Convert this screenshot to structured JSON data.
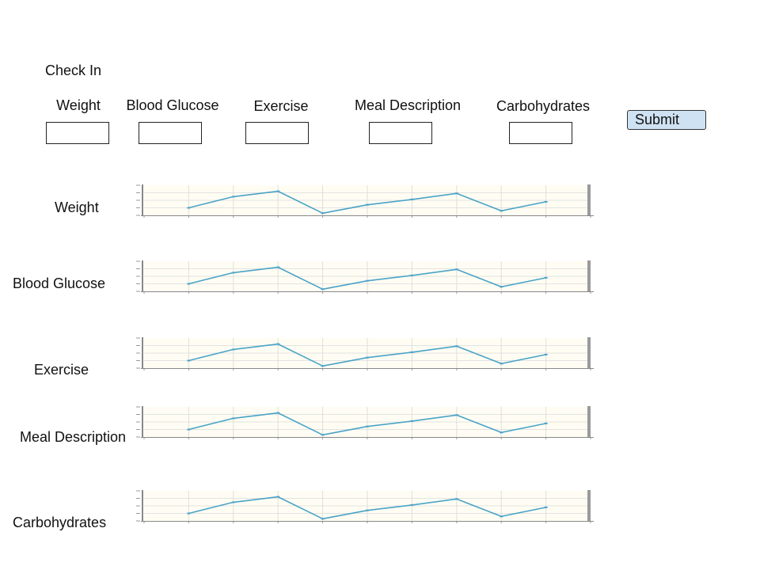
{
  "form": {
    "title": "Check In",
    "fields": [
      {
        "label": "Weight",
        "value": ""
      },
      {
        "label": "Blood Glucose",
        "value": ""
      },
      {
        "label": "Exercise",
        "value": ""
      },
      {
        "label": "Meal Description",
        "value": ""
      },
      {
        "label": "Carbohydrates",
        "value": ""
      }
    ],
    "submit_label": "Submit"
  },
  "charts": [
    {
      "label": "Weight"
    },
    {
      "label": "Blood Glucose"
    },
    {
      "label": "Exercise"
    },
    {
      "label": "Meal Description"
    },
    {
      "label": "Carbohydrates"
    }
  ],
  "chart_data": [
    {
      "type": "line",
      "x": [
        1,
        2,
        3,
        4,
        5,
        6,
        7,
        8,
        9
      ],
      "values": [
        0.25,
        0.62,
        0.8,
        0.07,
        0.35,
        0.53,
        0.73,
        0.15,
        0.45
      ],
      "ylim": [
        0,
        1
      ],
      "grid": true,
      "color": "#4aa3c8",
      "background": "#fffdf3"
    },
    {
      "type": "line",
      "x": [
        1,
        2,
        3,
        4,
        5,
        6,
        7,
        8,
        9
      ],
      "values": [
        0.25,
        0.62,
        0.8,
        0.07,
        0.35,
        0.53,
        0.73,
        0.15,
        0.45
      ],
      "ylim": [
        0,
        1
      ],
      "grid": true,
      "color": "#4aa3c8",
      "background": "#fffdf3"
    },
    {
      "type": "line",
      "x": [
        1,
        2,
        3,
        4,
        5,
        6,
        7,
        8,
        9
      ],
      "values": [
        0.25,
        0.62,
        0.8,
        0.07,
        0.35,
        0.53,
        0.73,
        0.15,
        0.45
      ],
      "ylim": [
        0,
        1
      ],
      "grid": true,
      "color": "#4aa3c8",
      "background": "#fffdf3"
    },
    {
      "type": "line",
      "x": [
        1,
        2,
        3,
        4,
        5,
        6,
        7,
        8,
        9
      ],
      "values": [
        0.25,
        0.62,
        0.8,
        0.07,
        0.35,
        0.53,
        0.73,
        0.15,
        0.45
      ],
      "ylim": [
        0,
        1
      ],
      "grid": true,
      "color": "#4aa3c8",
      "background": "#fffdf3"
    },
    {
      "type": "line",
      "x": [
        1,
        2,
        3,
        4,
        5,
        6,
        7,
        8,
        9
      ],
      "values": [
        0.25,
        0.62,
        0.8,
        0.07,
        0.35,
        0.53,
        0.73,
        0.15,
        0.45
      ],
      "ylim": [
        0,
        1
      ],
      "grid": true,
      "color": "#4aa3c8",
      "background": "#fffdf3"
    }
  ]
}
